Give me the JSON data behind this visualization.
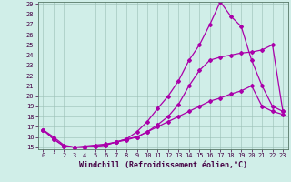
{
  "xlabel": "Windchill (Refroidissement éolien,°C)",
  "bg_color": "#d0eee8",
  "grid_color": "#b0d8cc",
  "line_color": "#aa00aa",
  "xlim": [
    -0.5,
    23.5
  ],
  "ylim": [
    15,
    29
  ],
  "xticks": [
    0,
    1,
    2,
    3,
    4,
    5,
    6,
    7,
    8,
    9,
    10,
    11,
    12,
    13,
    14,
    15,
    16,
    17,
    18,
    19,
    20,
    21,
    22,
    23
  ],
  "yticks": [
    15,
    16,
    17,
    18,
    19,
    20,
    21,
    22,
    23,
    24,
    25,
    26,
    27,
    28,
    29
  ],
  "line1_x": [
    0,
    1,
    2,
    3,
    4,
    5,
    6,
    7,
    8,
    9,
    10,
    11,
    12,
    13,
    14,
    15,
    16,
    17,
    18,
    19,
    20,
    21,
    22,
    23
  ],
  "line1_y": [
    16.7,
    16.0,
    15.2,
    15.0,
    15.1,
    15.2,
    15.3,
    15.5,
    15.7,
    16.0,
    16.5,
    17.2,
    18.0,
    19.2,
    21.0,
    22.5,
    23.5,
    23.8,
    24.0,
    24.2,
    24.3,
    24.5,
    25.0,
    18.5
  ],
  "line2_x": [
    0,
    1,
    2,
    3,
    4,
    5,
    6,
    7,
    8,
    9,
    10,
    11,
    12,
    13,
    14,
    15,
    16,
    17,
    18,
    19,
    20,
    21,
    22,
    23
  ],
  "line2_y": [
    16.7,
    15.8,
    15.1,
    15.0,
    15.0,
    15.1,
    15.2,
    15.5,
    15.8,
    16.5,
    17.5,
    18.8,
    20.0,
    21.5,
    23.5,
    25.0,
    27.0,
    29.2,
    27.8,
    26.8,
    23.5,
    21.0,
    19.0,
    18.5
  ],
  "line3_x": [
    0,
    1,
    2,
    3,
    4,
    5,
    6,
    7,
    8,
    9,
    10,
    11,
    12,
    13,
    14,
    15,
    16,
    17,
    18,
    19,
    20,
    21,
    22,
    23
  ],
  "line3_y": [
    16.7,
    15.8,
    15.1,
    15.0,
    15.0,
    15.1,
    15.2,
    15.5,
    15.8,
    16.0,
    16.5,
    17.0,
    17.5,
    18.0,
    18.5,
    19.0,
    19.5,
    19.8,
    20.2,
    20.5,
    21.0,
    19.0,
    18.5,
    18.2
  ],
  "marker": "D",
  "marker_size": 2,
  "line_width": 0.9,
  "tick_fontsize": 5,
  "xlabel_fontsize": 6
}
